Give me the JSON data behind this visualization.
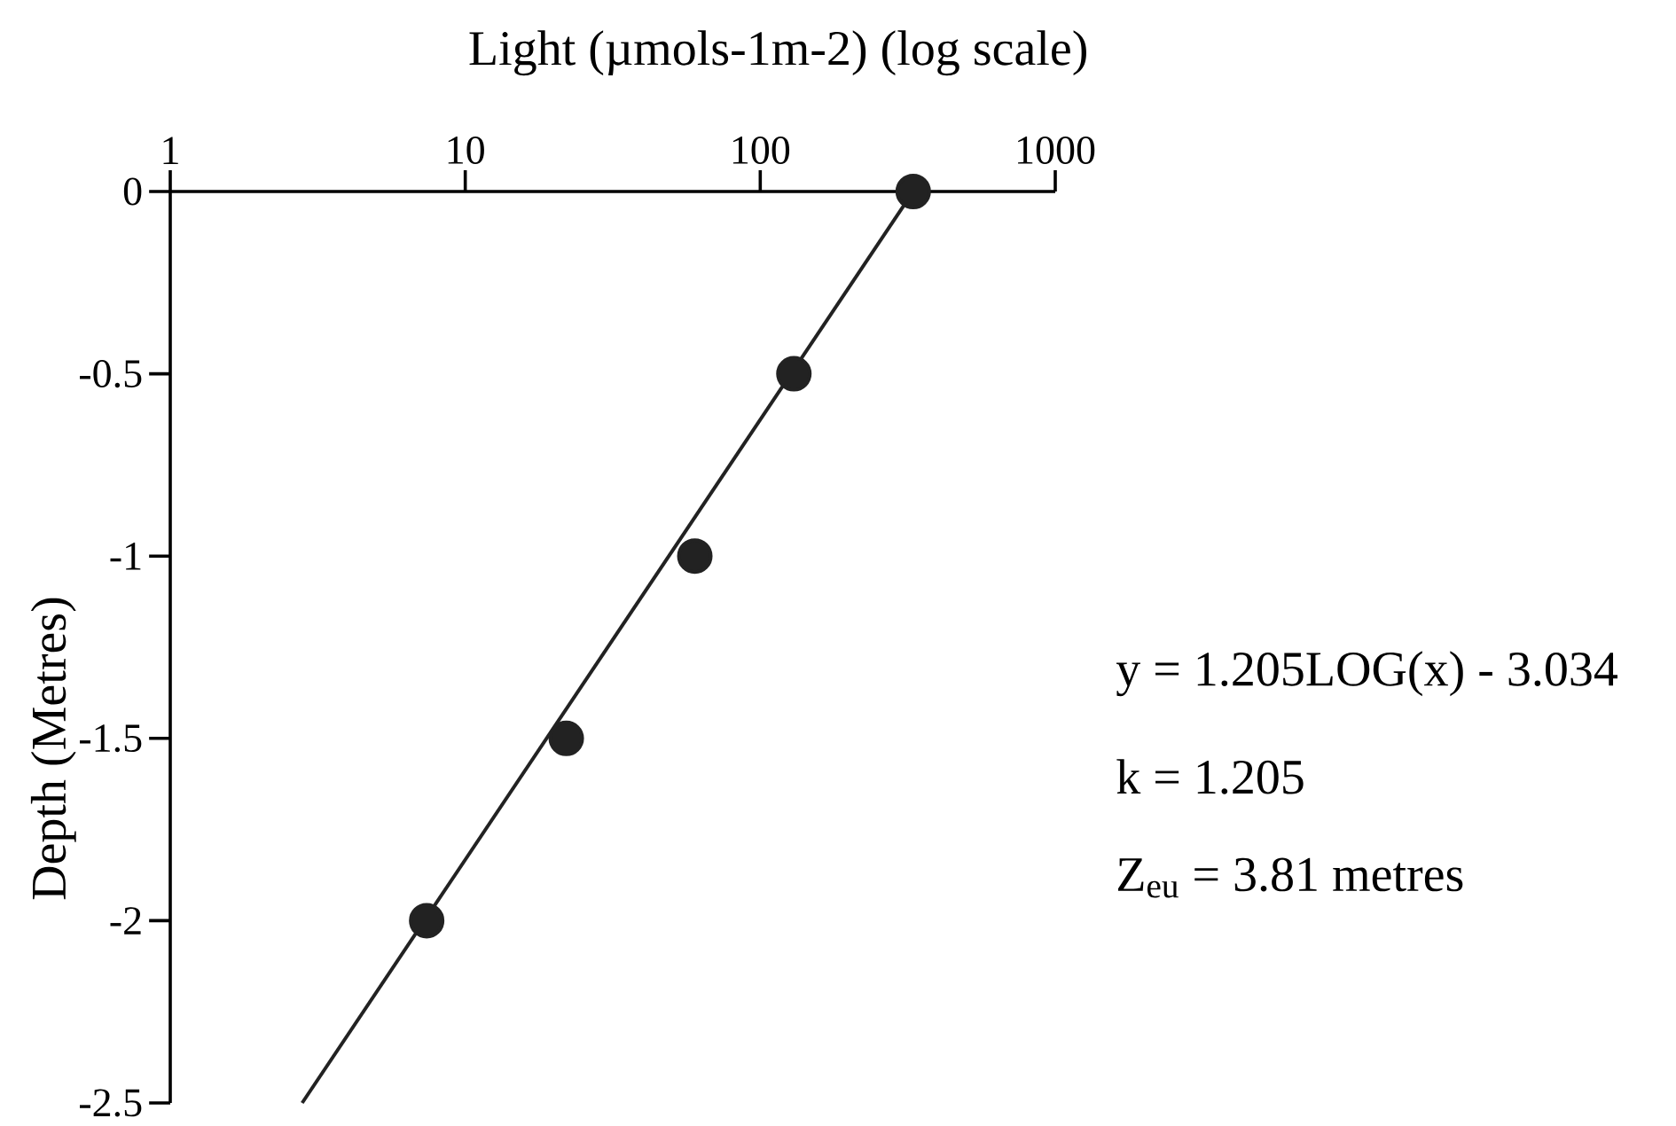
{
  "chart_data": {
    "type": "scatter",
    "xlabel": "Light (µmols-1m-2) (log scale)",
    "ylabel": "Depth (Metres)",
    "log": "x",
    "xlim": [
      1,
      1000
    ],
    "ylim": [
      -2.5,
      0
    ],
    "xticks": [
      1,
      10,
      100,
      1000
    ],
    "yticks": [
      0,
      -0.5,
      -1,
      -1.5,
      -2,
      -2.5
    ],
    "annotations": [
      "y = 1.205LOG(x) - 3.034",
      "k = 1.205",
      "Z$_{eu}$ = 3.81 metres"
    ],
    "series": [
      {
        "x": [
          330,
          130,
          60,
          22,
          7.4
        ],
        "values": [
          0,
          -0.5,
          -1,
          -1.5,
          -2
        ],
        "color": "#222222",
        "marker": "circle"
      },
      {
        "type": "line",
        "x": [
          2.8,
          330
        ],
        "values": [
          -2.5,
          0
        ],
        "color": "#222222",
        "marker": "none",
        "line_style": "solid"
      }
    ]
  }
}
